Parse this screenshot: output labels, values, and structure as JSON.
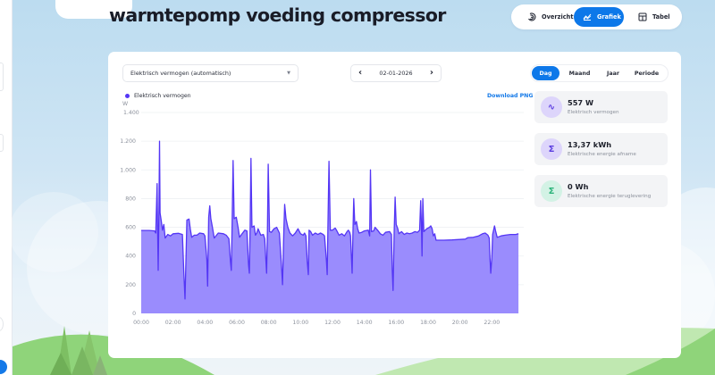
{
  "page": {
    "title": "warmtepomp voeding compressor"
  },
  "view_switch": {
    "items": [
      {
        "label": "Overzicht",
        "icon": "speedometer-icon",
        "active": false
      },
      {
        "label": "Grafiek",
        "icon": "area-chart-icon",
        "active": true
      },
      {
        "label": "Tabel",
        "icon": "table-icon",
        "active": false
      }
    ]
  },
  "controls": {
    "metric_select": {
      "value": "Elektrisch vermogen (automatisch)",
      "icon": "chevron-down-icon"
    },
    "date_nav": {
      "date": "02-01-2026",
      "prev_icon": "chevron-left-icon",
      "next_icon": "chevron-right-icon"
    },
    "period_tabs": [
      {
        "label": "Dag",
        "active": true
      },
      {
        "label": "Maand",
        "active": false
      },
      {
        "label": "Jaar",
        "active": false
      },
      {
        "label": "Periode",
        "active": false
      }
    ],
    "download_label": "Download PNG"
  },
  "stats": [
    {
      "value": "557 W",
      "label": "Elektrisch vermogen",
      "icon": "wave-icon",
      "icon_bg": "#ddd5fb",
      "icon_color": "#5a3de0"
    },
    {
      "value": "13,37 kWh",
      "label": "Elektrische energie afname",
      "icon": "sigma-icon",
      "icon_bg": "#ddd5fb",
      "icon_color": "#5a3de0"
    },
    {
      "value": "0 Wh",
      "label": "Elektrische energie teruglevering",
      "icon": "sigma-icon",
      "icon_bg": "#d3f2e5",
      "icon_color": "#2bb37a"
    }
  ],
  "colors": {
    "accent": "#0d78e9",
    "series_line": "#5436f5",
    "series_fill": "#9a8cfd"
  },
  "chart_data": {
    "type": "area",
    "title": "",
    "legend": [
      "Elektrisch vermogen"
    ],
    "legend_position": "top-left",
    "xlabel": "",
    "ylabel": "W",
    "ylim": [
      0,
      1400
    ],
    "grid": true,
    "y_ticks": [
      "0",
      "200",
      "400",
      "600",
      "800",
      "1.000",
      "1.200",
      "1.400"
    ],
    "x_ticks": [
      "00:00",
      "02:00",
      "04:00",
      "06:00",
      "08:00",
      "10:00",
      "12:00",
      "14:00",
      "16:00",
      "18:00",
      "20:00",
      "22:00"
    ],
    "series": [
      {
        "name": "Elektrisch vermogen",
        "unit": "W",
        "points": [
          [
            "00:00",
            578
          ],
          [
            "00:30",
            578
          ],
          [
            "00:50",
            575
          ],
          [
            "00:55",
            560
          ],
          [
            "01:00",
            905
          ],
          [
            "01:02",
            560
          ],
          [
            "01:04",
            300
          ],
          [
            "01:07",
            750
          ],
          [
            "01:09",
            1200
          ],
          [
            "01:11",
            700
          ],
          [
            "01:15",
            650
          ],
          [
            "01:20",
            580
          ],
          [
            "01:25",
            620
          ],
          [
            "01:30",
            525
          ],
          [
            "01:40",
            550
          ],
          [
            "01:50",
            540
          ],
          [
            "02:00",
            555
          ],
          [
            "02:20",
            558
          ],
          [
            "02:35",
            550
          ],
          [
            "02:40",
            300
          ],
          [
            "02:45",
            100
          ],
          [
            "02:52",
            650
          ],
          [
            "03:00",
            658
          ],
          [
            "03:05",
            585
          ],
          [
            "03:10",
            530
          ],
          [
            "03:20",
            545
          ],
          [
            "03:30",
            545
          ],
          [
            "03:40",
            560
          ],
          [
            "03:55",
            555
          ],
          [
            "04:00",
            540
          ],
          [
            "04:07",
            380
          ],
          [
            "04:10",
            190
          ],
          [
            "04:14",
            670
          ],
          [
            "04:18",
            750
          ],
          [
            "04:22",
            660
          ],
          [
            "04:28",
            600
          ],
          [
            "04:35",
            525
          ],
          [
            "04:50",
            560
          ],
          [
            "05:10",
            555
          ],
          [
            "05:20",
            545
          ],
          [
            "05:30",
            520
          ],
          [
            "05:36",
            360
          ],
          [
            "05:39",
            300
          ],
          [
            "05:42",
            580
          ],
          [
            "05:46",
            1065
          ],
          [
            "05:50",
            660
          ],
          [
            "05:58",
            670
          ],
          [
            "06:05",
            595
          ],
          [
            "06:10",
            530
          ],
          [
            "06:20",
            555
          ],
          [
            "06:30",
            580
          ],
          [
            "06:38",
            575
          ],
          [
            "06:44",
            340
          ],
          [
            "06:47",
            280
          ],
          [
            "06:50",
            610
          ],
          [
            "06:53",
            1080
          ],
          [
            "06:57",
            600
          ],
          [
            "07:05",
            610
          ],
          [
            "07:10",
            545
          ],
          [
            "07:15",
            560
          ],
          [
            "07:20",
            590
          ],
          [
            "07:30",
            545
          ],
          [
            "07:40",
            550
          ],
          [
            "07:45",
            520
          ],
          [
            "07:52",
            280
          ],
          [
            "07:55",
            560
          ],
          [
            "07:58",
            1040
          ],
          [
            "08:03",
            570
          ],
          [
            "08:10",
            565
          ],
          [
            "08:20",
            590
          ],
          [
            "08:30",
            600
          ],
          [
            "08:40",
            560
          ],
          [
            "08:48",
            340
          ],
          [
            "08:52",
            200
          ],
          [
            "08:57",
            580
          ],
          [
            "09:00",
            760
          ],
          [
            "09:05",
            660
          ],
          [
            "09:12",
            600
          ],
          [
            "09:20",
            560
          ],
          [
            "09:30",
            540
          ],
          [
            "09:40",
            560
          ],
          [
            "09:50",
            590
          ],
          [
            "10:00",
            555
          ],
          [
            "10:10",
            545
          ],
          [
            "10:15",
            560
          ],
          [
            "10:20",
            540
          ],
          [
            "10:25",
            360
          ],
          [
            "10:29",
            270
          ],
          [
            "10:32",
            580
          ],
          [
            "10:38",
            570
          ],
          [
            "10:45",
            545
          ],
          [
            "10:55",
            560
          ],
          [
            "11:05",
            550
          ],
          [
            "11:15",
            560
          ],
          [
            "11:25",
            550
          ],
          [
            "11:30",
            540
          ],
          [
            "11:37",
            370
          ],
          [
            "11:40",
            270
          ],
          [
            "11:43",
            600
          ],
          [
            "11:47",
            1060
          ],
          [
            "11:52",
            580
          ],
          [
            "12:00",
            580
          ],
          [
            "12:10",
            595
          ],
          [
            "12:15",
            580
          ],
          [
            "12:25",
            545
          ],
          [
            "12:35",
            555
          ],
          [
            "12:45",
            540
          ],
          [
            "12:55",
            570
          ],
          [
            "13:00",
            580
          ],
          [
            "13:05",
            565
          ],
          [
            "13:08",
            540
          ],
          [
            "13:14",
            280
          ],
          [
            "13:17",
            560
          ],
          [
            "13:20",
            800
          ],
          [
            "13:24",
            620
          ],
          [
            "13:30",
            640
          ],
          [
            "13:35",
            590
          ],
          [
            "13:40",
            560
          ],
          [
            "13:50",
            565
          ],
          [
            "14:00",
            575
          ],
          [
            "14:15",
            580
          ],
          [
            "14:20",
            540
          ],
          [
            "14:23",
            1000
          ],
          [
            "14:27",
            570
          ],
          [
            "14:35",
            575
          ],
          [
            "14:40",
            600
          ],
          [
            "14:50",
            580
          ],
          [
            "15:00",
            555
          ],
          [
            "15:10",
            545
          ],
          [
            "15:20",
            565
          ],
          [
            "15:35",
            570
          ],
          [
            "15:42",
            550
          ],
          [
            "15:45",
            300
          ],
          [
            "15:48",
            160
          ],
          [
            "15:52",
            560
          ],
          [
            "15:56",
            810
          ],
          [
            "16:00",
            620
          ],
          [
            "16:06",
            590
          ],
          [
            "16:10",
            555
          ],
          [
            "16:20",
            570
          ],
          [
            "16:30",
            550
          ],
          [
            "16:40",
            560
          ],
          [
            "16:50",
            555
          ],
          [
            "17:00",
            560
          ],
          [
            "17:10",
            570
          ],
          [
            "17:20",
            565
          ],
          [
            "17:28",
            580
          ],
          [
            "17:32",
            785
          ],
          [
            "17:35",
            600
          ],
          [
            "17:37",
            400
          ],
          [
            "17:40",
            800
          ],
          [
            "17:44",
            570
          ],
          [
            "17:55",
            590
          ],
          [
            "18:05",
            600
          ],
          [
            "18:10",
            610
          ],
          [
            "18:15",
            590
          ],
          [
            "18:20",
            540
          ],
          [
            "18:25",
            555
          ],
          [
            "18:30",
            510
          ],
          [
            "18:45",
            510
          ],
          [
            "19:00",
            510
          ],
          [
            "19:30",
            512
          ],
          [
            "20:00",
            515
          ],
          [
            "20:20",
            518
          ],
          [
            "20:30",
            528
          ],
          [
            "20:50",
            530
          ],
          [
            "21:10",
            540
          ],
          [
            "21:25",
            555
          ],
          [
            "21:35",
            560
          ],
          [
            "21:45",
            545
          ],
          [
            "21:50",
            525
          ],
          [
            "21:53",
            380
          ],
          [
            "21:56",
            280
          ],
          [
            "22:00",
            390
          ],
          [
            "22:03",
            550
          ],
          [
            "22:10",
            610
          ],
          [
            "22:14",
            575
          ],
          [
            "22:20",
            530
          ],
          [
            "22:35",
            540
          ],
          [
            "22:50",
            545
          ],
          [
            "23:10",
            550
          ],
          [
            "23:30",
            550
          ],
          [
            "23:40",
            555
          ]
        ]
      }
    ]
  }
}
